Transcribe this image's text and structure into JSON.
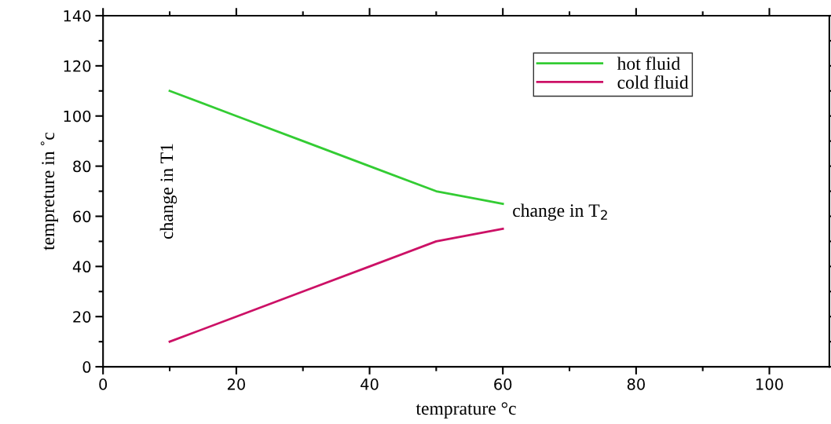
{
  "chart_data": {
    "type": "line",
    "xlabel": "temprature °c",
    "ylabel": "tempreture in ˚c",
    "x": [
      10,
      20,
      30,
      40,
      50,
      60
    ],
    "series": [
      {
        "name": "hot fluid",
        "color": "#33cc33",
        "values": [
          110,
          100,
          90,
          80,
          70,
          65
        ]
      },
      {
        "name": "cold fluid",
        "color": "#cc1166",
        "values": [
          10,
          20,
          30,
          40,
          50,
          55
        ]
      }
    ],
    "xlim": [
      0,
      109
    ],
    "xticks": [
      0,
      20,
      40,
      60,
      80,
      100
    ],
    "ylim": [
      0,
      140
    ],
    "yticks": [
      0,
      20,
      40,
      60,
      80,
      100,
      120,
      140
    ],
    "annotations": [
      "change in T1",
      "change in T$_{2}$"
    ],
    "legend": "top right",
    "grid": false,
    "marker": "none",
    "line_style": "solid"
  }
}
